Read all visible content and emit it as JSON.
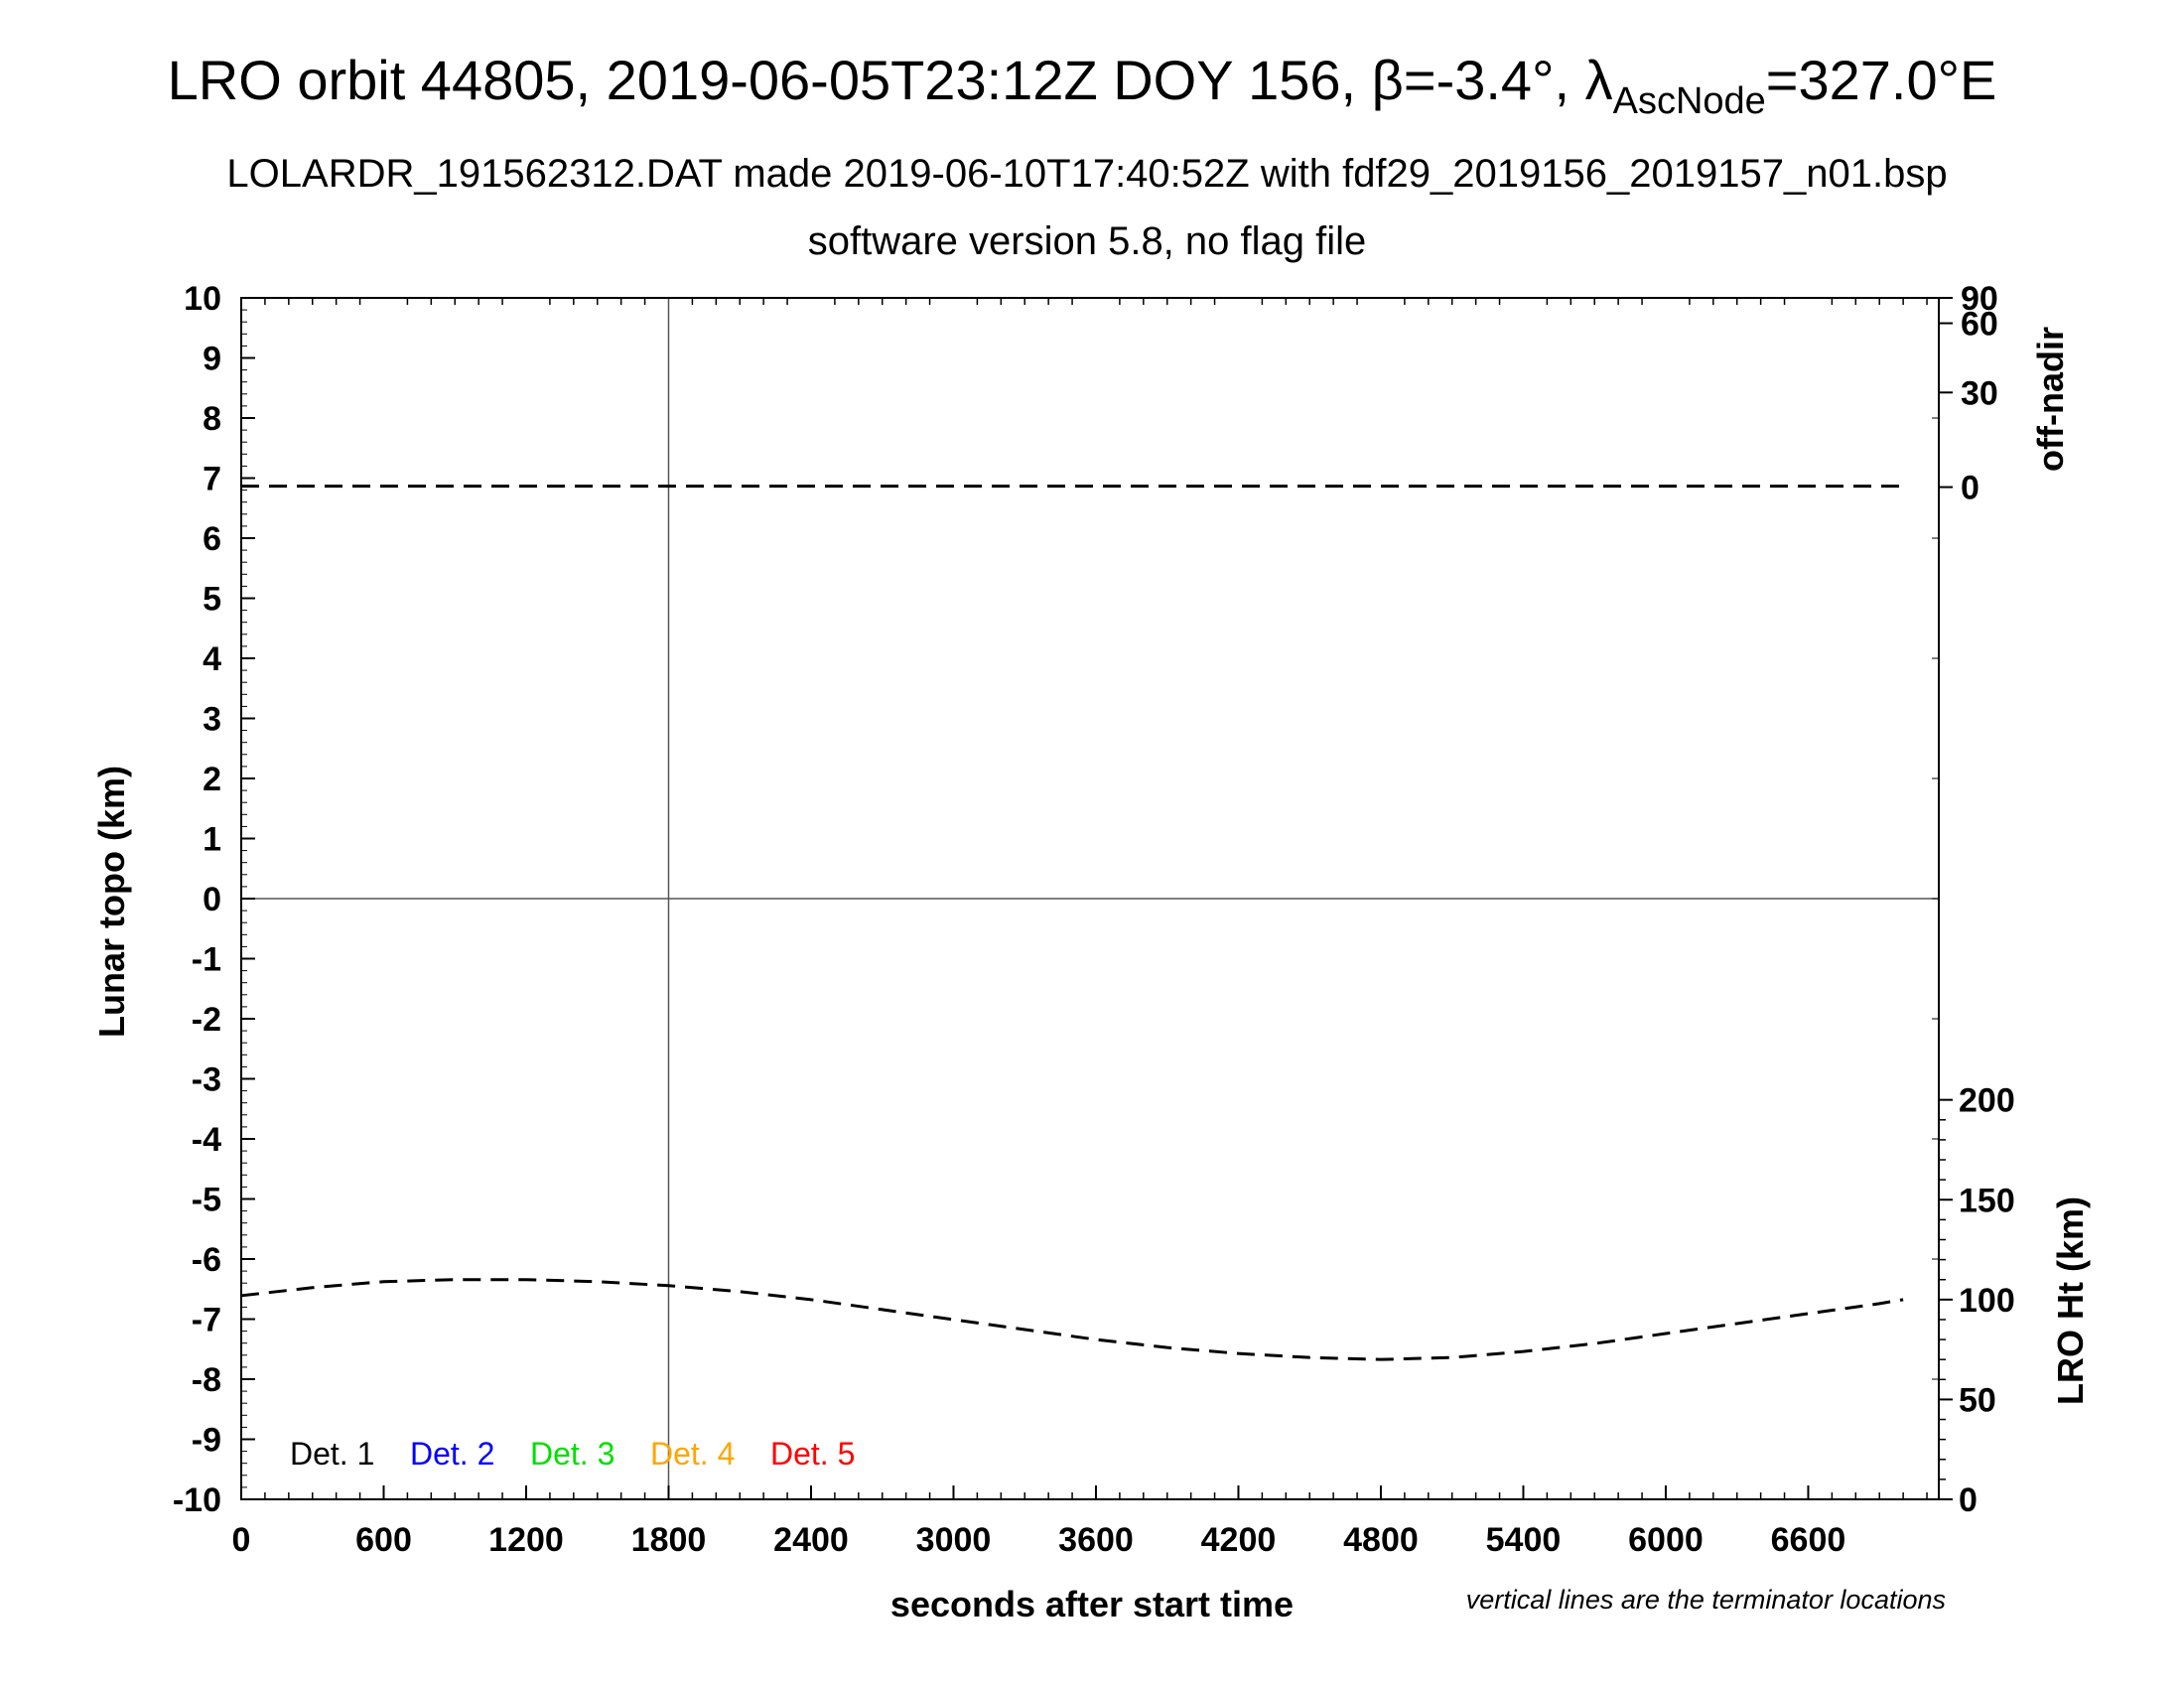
{
  "colors": {
    "foreground": "#000000",
    "det1": "#000000",
    "det2": "#0000ff",
    "det3": "#00e000",
    "det4": "#ffa500",
    "det5": "#ff0000"
  },
  "chart_data": {
    "type": "line",
    "title_main": "LRO orbit 44805, 2019-06-05T23:12Z DOY 156, β=-3.4°, λ",
    "title_sub": "AscNode",
    "title_end": "=327.0°E",
    "subtitle1": "LOLARDR_191562312.DAT made 2019-06-10T17:40:52Z with fdf29_2019156_2019157_n01.bsp",
    "subtitle2": "software version 5.8, no flag file",
    "xlabel": "seconds after start time",
    "ylabel_left": "Lunar topo (km)",
    "ylabel_right_top": "off-nadir",
    "ylabel_right_bottom": "LRO Ht (km)",
    "note": "vertical lines are the terminator locations",
    "xlim": [
      0,
      7150
    ],
    "ylim": [
      -10,
      10
    ],
    "x_ticks": [
      "0",
      "600",
      "1200",
      "1800",
      "2400",
      "3000",
      "3600",
      "4200",
      "4800",
      "5400",
      "6000",
      "6600"
    ],
    "y_ticks": [
      "10",
      "9",
      "8",
      "7",
      "6",
      "5",
      "4",
      "3",
      "2",
      "1",
      "0",
      "-1",
      "-2",
      "-3",
      "-4",
      "-5",
      "-6",
      "-7",
      "-8",
      "-9",
      "-10"
    ],
    "right_top_ticks": [
      {
        "label": "90",
        "value": 90
      },
      {
        "label": "60",
        "value": 60
      },
      {
        "label": "30",
        "value": 30
      },
      {
        "label": "0",
        "value": 0
      }
    ],
    "right_bottom_ticks": [
      {
        "label": "200",
        "value": 200
      },
      {
        "label": "150",
        "value": 150
      },
      {
        "label": "100",
        "value": 100
      },
      {
        "label": "50",
        "value": 50
      },
      {
        "label": "0",
        "value": 0
      }
    ],
    "terminator_lines_x": [
      1800
    ],
    "series": [
      {
        "kind": "off-nadir",
        "style": "dashed",
        "x": [
          0,
          1000,
          2000,
          3000,
          4000,
          5000,
          6000,
          7000
        ],
        "y": [
          0.3,
          0.3,
          0.3,
          0.3,
          0.3,
          0.3,
          0.3,
          0.3
        ]
      },
      {
        "kind": "lro-height",
        "style": "dashed",
        "x": [
          0,
          300,
          600,
          900,
          1200,
          1500,
          1800,
          2100,
          2400,
          2700,
          3000,
          3300,
          3600,
          3900,
          4200,
          4500,
          4800,
          5100,
          5400,
          5700,
          6000,
          6300,
          6600,
          6900,
          7000
        ],
        "y": [
          102,
          106,
          109,
          110,
          110,
          109,
          107,
          104,
          100,
          95,
          90,
          85,
          80,
          76,
          73,
          71,
          70,
          71,
          74,
          78,
          83,
          88,
          93,
          98,
          100
        ]
      }
    ],
    "legend": [
      {
        "label": "Det. 1",
        "color": "#000000"
      },
      {
        "label": "Det. 2",
        "color": "#0000ff"
      },
      {
        "label": "Det. 3",
        "color": "#00e000"
      },
      {
        "label": "Det. 4",
        "color": "#ffa500"
      },
      {
        "label": "Det. 5",
        "color": "#ff0000"
      }
    ]
  }
}
